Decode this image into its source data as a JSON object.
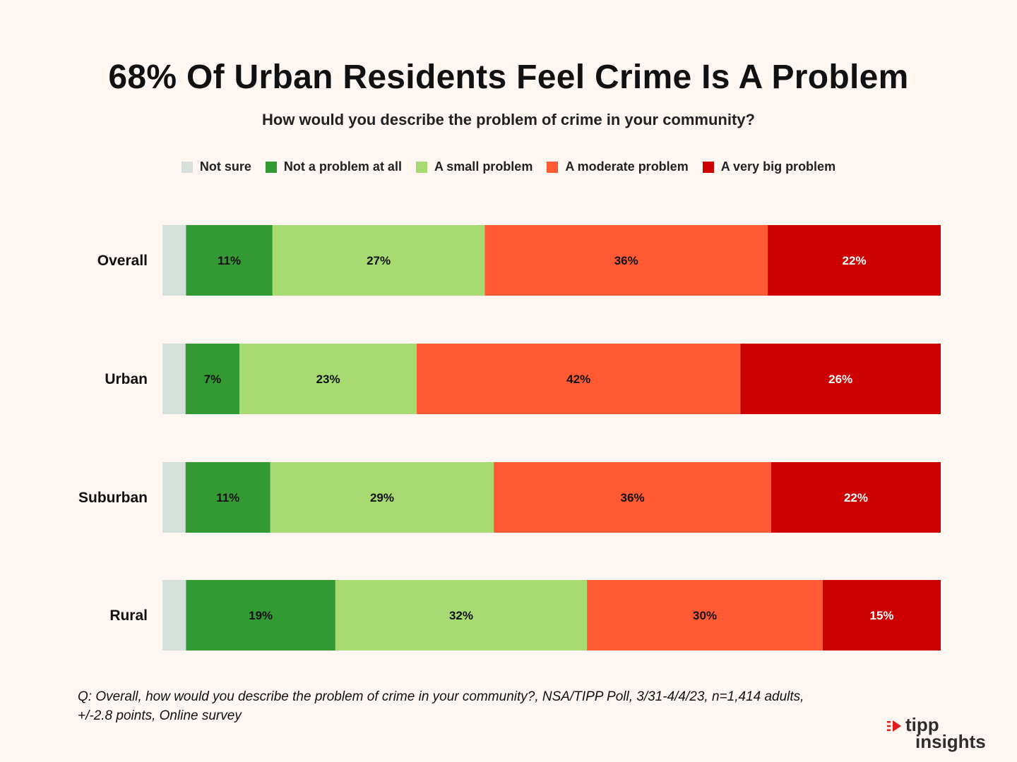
{
  "header": {
    "title": "68% Of Urban Residents Feel Crime Is A Problem",
    "subtitle": "How would you describe the problem of crime in your community?"
  },
  "legend": [
    {
      "label": "Not sure",
      "color": "#d6e0da"
    },
    {
      "label": "Not a problem at all",
      "color": "#339933"
    },
    {
      "label": "A small problem",
      "color": "#a8da72"
    },
    {
      "label": "A moderate problem",
      "color": "#ff5a33"
    },
    {
      "label": "A very big problem",
      "color": "#cc0000"
    }
  ],
  "chart_data": {
    "type": "bar",
    "orientation": "horizontal",
    "stacked": true,
    "title": "68% Of Urban Residents Feel Crime Is A Problem",
    "subtitle": "How would you describe the problem of crime in your community?",
    "categories": [
      "Overall",
      "Urban",
      "Suburban",
      "Rural"
    ],
    "series": [
      {
        "name": "Not sure",
        "values": [
          3,
          3,
          3,
          3
        ],
        "labels": [
          "",
          "",
          "",
          ""
        ],
        "color": "#d6e0da"
      },
      {
        "name": "Not a problem at all",
        "values": [
          11,
          7,
          11,
          19
        ],
        "labels": [
          "11%",
          "7%",
          "11%",
          "19%"
        ],
        "color": "#339933"
      },
      {
        "name": "A small problem",
        "values": [
          27,
          23,
          29,
          32
        ],
        "labels": [
          "27%",
          "23%",
          "29%",
          "32%"
        ],
        "color": "#a8da72"
      },
      {
        "name": "A moderate problem",
        "values": [
          36,
          42,
          36,
          30
        ],
        "labels": [
          "36%",
          "42%",
          "36%",
          "30%"
        ],
        "color": "#ff5a33"
      },
      {
        "name": "A very big problem",
        "values": [
          22,
          26,
          22,
          15
        ],
        "labels": [
          "22%",
          "26%",
          "22%",
          "15%"
        ],
        "color": "#cc0000"
      }
    ],
    "xlim": [
      0,
      100
    ],
    "legend_position": "top-center",
    "grid": false
  },
  "footnote": {
    "line1": "Q: Overall, how would you describe the problem of crime in your community?, NSA/TIPP Poll, 3/31-4/4/23, n=1,414 adults,",
    "line2": "+/-2.8 points, Online survey"
  },
  "logo": {
    "word1": "tipp",
    "word2": "insights",
    "icon": "tipp-insights-logo-icon"
  }
}
